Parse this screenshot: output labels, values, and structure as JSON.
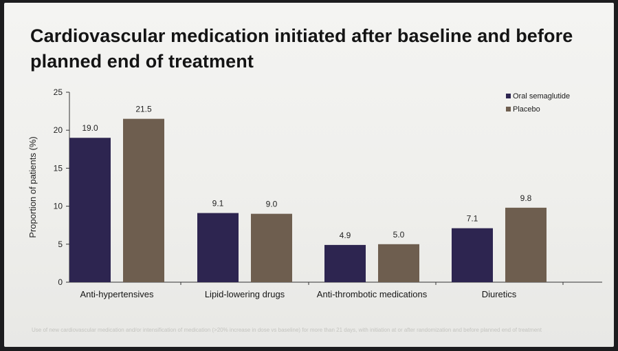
{
  "slide": {
    "title": "Cardiovascular medication initiated after baseline and before planned end of treatment",
    "footnote": "Use of new cardiovascular medication and/or intensification of medication (>20% increase in dose vs baseline) for more than 21 days, with initiation at or after randomization and before planned end of treatment"
  },
  "chart_data": {
    "type": "bar",
    "title": "Cardiovascular medication initiated after baseline and before planned end of treatment",
    "xlabel": "",
    "ylabel": "Proportion of patients (%)",
    "ylim": [
      0,
      25
    ],
    "yticks": [
      0,
      5,
      10,
      15,
      20,
      25
    ],
    "categories": [
      "Anti-hypertensives",
      "Lipid-lowering drugs",
      "Anti-thrombotic medications",
      "Diuretics"
    ],
    "series": [
      {
        "name": "Oral semaglutide",
        "color": "#2d2550",
        "values": [
          19.0,
          9.1,
          4.9,
          7.1
        ],
        "labels": [
          "19.0",
          "9.1",
          "4.9",
          "7.1"
        ]
      },
      {
        "name": "Placebo",
        "color": "#6e5e4f",
        "values": [
          21.5,
          9.0,
          5.0,
          9.8
        ],
        "labels": [
          "21.5",
          "9.0",
          "5.0",
          "9.8"
        ]
      }
    ],
    "legend_position": "top-right",
    "grid": false
  }
}
